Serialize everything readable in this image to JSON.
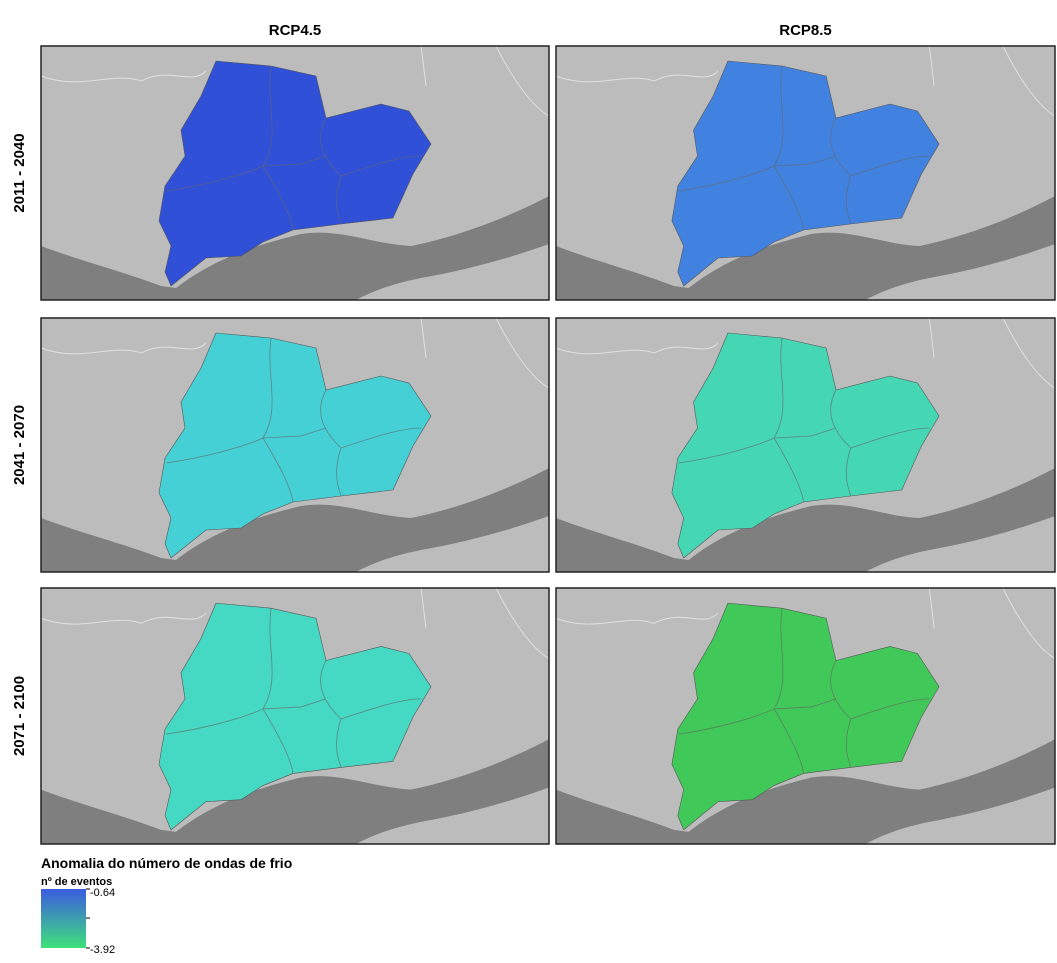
{
  "columns": [
    "RCP4.5",
    "RCP8.5"
  ],
  "rows": [
    "2011 - 2040",
    "2041 - 2070",
    "2071 - 2100"
  ],
  "panels": [
    [
      {
        "color": "#3050d8"
      },
      {
        "color": "#4182e0"
      }
    ],
    [
      {
        "color": "#45d0d6"
      },
      {
        "color": "#45d6b4"
      }
    ],
    [
      {
        "color": "#45d8c2"
      },
      {
        "color": "#40c858"
      }
    ]
  ],
  "legend": {
    "title": "Anomalia do número de ondas de frio",
    "subtitle": "nº de eventos",
    "top_label": "-0.64",
    "bottom_label": "-3.92",
    "colors": [
      "#3b5ce0",
      "#3fe07c"
    ]
  }
}
